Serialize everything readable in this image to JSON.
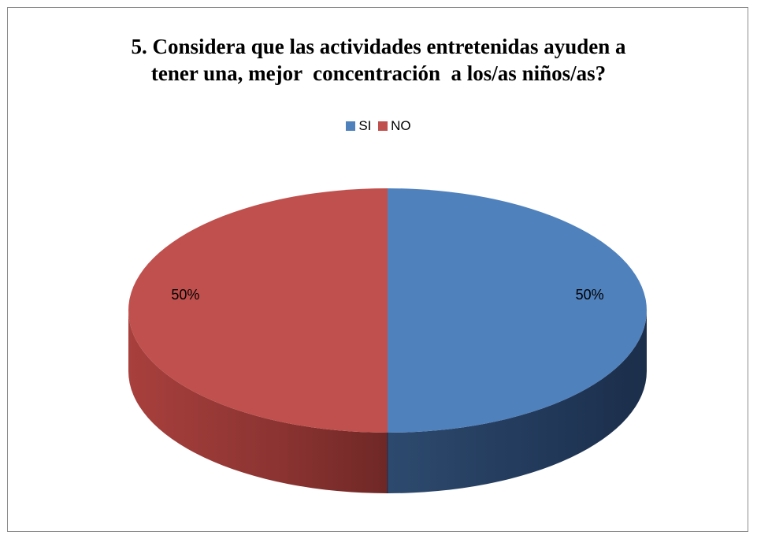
{
  "chart_data": {
    "type": "pie",
    "title_lines": [
      "5. Considera que las actividades entretenidas ayuden a",
      "tener una, mejor  concentración  a los/as niños/as?"
    ],
    "categories": [
      "SI",
      "NO"
    ],
    "values": [
      50,
      50
    ],
    "data_labels": [
      "50%",
      "50%"
    ],
    "colors": [
      "#4f81bd",
      "#c0504d"
    ],
    "legend_position": "top",
    "style": "3d-pie"
  }
}
